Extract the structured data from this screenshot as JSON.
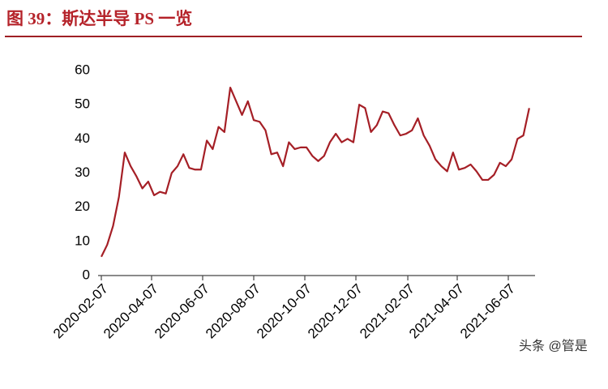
{
  "chart_data": {
    "type": "line",
    "title": "图 39：斯达半导 PS 一览",
    "x": [
      "2020-02-07",
      "2020-02-14",
      "2020-02-21",
      "2020-02-28",
      "2020-03-06",
      "2020-03-13",
      "2020-03-20",
      "2020-03-27",
      "2020-04-03",
      "2020-04-10",
      "2020-04-17",
      "2020-04-24",
      "2020-05-01",
      "2020-05-08",
      "2020-05-15",
      "2020-05-22",
      "2020-05-29",
      "2020-06-05",
      "2020-06-12",
      "2020-06-19",
      "2020-06-26",
      "2020-07-03",
      "2020-07-10",
      "2020-07-17",
      "2020-07-24",
      "2020-07-31",
      "2020-08-07",
      "2020-08-14",
      "2020-08-21",
      "2020-08-28",
      "2020-09-04",
      "2020-09-11",
      "2020-09-18",
      "2020-09-25",
      "2020-10-02",
      "2020-10-09",
      "2020-10-16",
      "2020-10-23",
      "2020-10-30",
      "2020-11-06",
      "2020-11-13",
      "2020-11-20",
      "2020-11-27",
      "2020-12-04",
      "2020-12-11",
      "2020-12-18",
      "2020-12-25",
      "2021-01-01",
      "2021-01-08",
      "2021-01-15",
      "2021-01-22",
      "2021-01-29",
      "2021-02-05",
      "2021-02-12",
      "2021-02-19",
      "2021-02-26",
      "2021-03-05",
      "2021-03-12",
      "2021-03-19",
      "2021-03-26",
      "2021-04-02",
      "2021-04-09",
      "2021-04-16",
      "2021-04-23",
      "2021-04-30",
      "2021-05-07",
      "2021-05-14",
      "2021-05-21",
      "2021-05-28",
      "2021-06-04",
      "2021-06-11",
      "2021-06-18",
      "2021-06-25",
      "2021-07-02"
    ],
    "series": [
      {
        "color": "#a51f26",
        "values": [
          5.5,
          9,
          14.5,
          23,
          36,
          32,
          29,
          25.5,
          27.5,
          23.5,
          24.5,
          24,
          30,
          32,
          35.5,
          31.5,
          31,
          31,
          39.5,
          37,
          43.5,
          42,
          55,
          51,
          47,
          51,
          45.5,
          45,
          42.5,
          35.5,
          36,
          32,
          39,
          37,
          37.5,
          37.5,
          35,
          33.5,
          35,
          39,
          41.5,
          39,
          40,
          39,
          50,
          49,
          42,
          44,
          48,
          47.5,
          44,
          41,
          41.5,
          42.5,
          46,
          41,
          38,
          34,
          32,
          30.5,
          36,
          31,
          31.5,
          32.5,
          30.5,
          28,
          28,
          29.5,
          33,
          32,
          34,
          40,
          41,
          49
        ]
      }
    ],
    "xlim": [
      "2020-02-07",
      "2021-07-07"
    ],
    "xticks": [
      "2020-02-07",
      "2020-04-07",
      "2020-06-07",
      "2020-08-07",
      "2020-10-07",
      "2020-12-07",
      "2021-02-07",
      "2021-04-07",
      "2021-06-07"
    ],
    "ylim": [
      0,
      60
    ],
    "yticks": [
      0,
      10,
      20,
      30,
      40,
      50,
      60
    ]
  },
  "watermark": "头条 @管是"
}
